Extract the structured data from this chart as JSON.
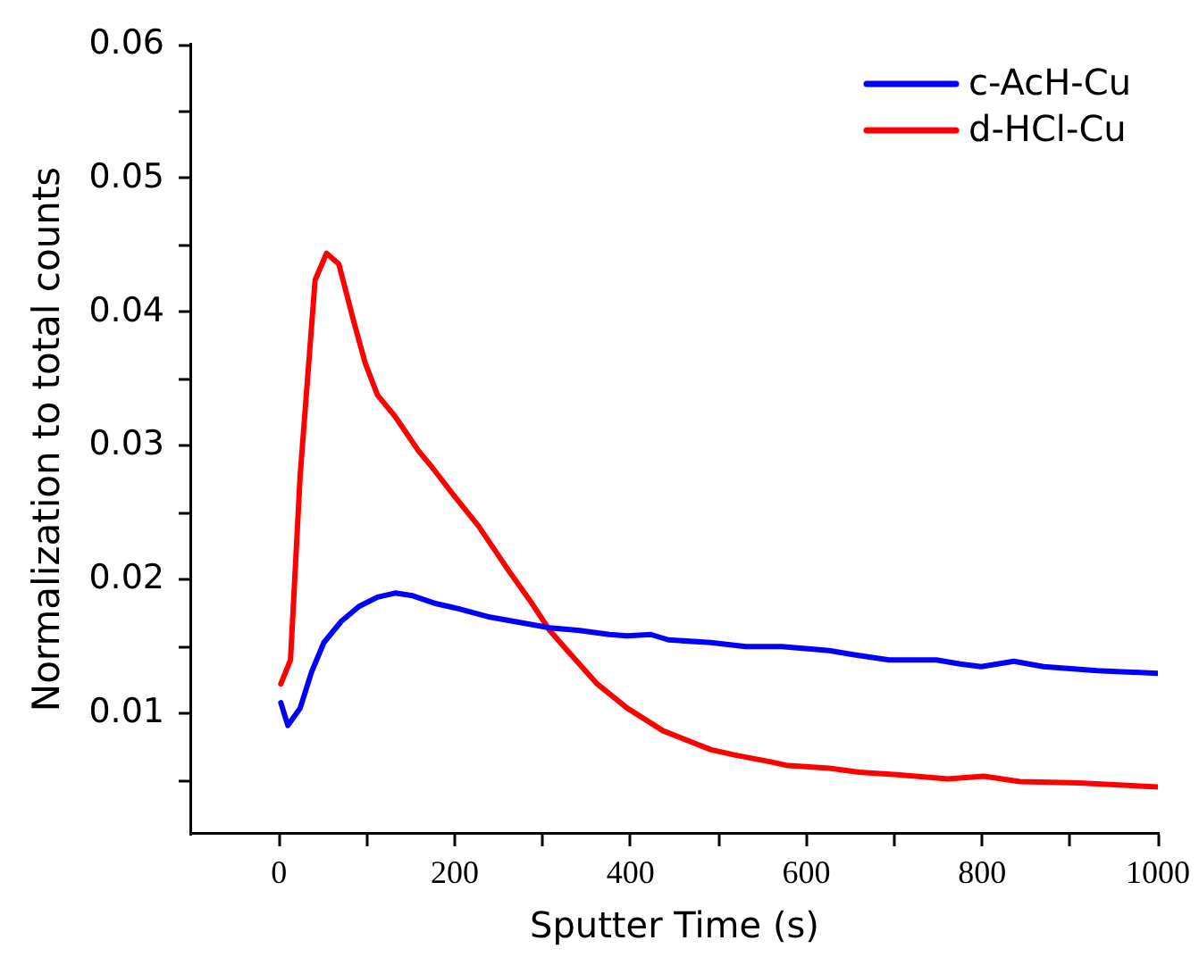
{
  "chart_data": {
    "type": "line",
    "xlabel": "Sputter Time (s)",
    "ylabel": "Normalization to total counts",
    "xlim": [
      -100,
      1000
    ],
    "xticks": [
      0,
      {
        "value": 100,
        "label": null
      },
      200,
      {
        "value": 300,
        "label": null
      },
      400,
      {
        "value": 500,
        "label": null
      },
      600,
      {
        "value": 700,
        "label": null
      },
      800,
      {
        "value": 900,
        "label": null
      },
      1000
    ],
    "ylim": [
      0.001,
      0.06
    ],
    "yticks": [
      {
        "value": 0.005,
        "label": null
      },
      0.01,
      {
        "value": 0.015,
        "label": null
      },
      0.02,
      {
        "value": 0.025,
        "label": null
      },
      0.03,
      {
        "value": 0.035,
        "label": null
      },
      0.04,
      {
        "value": 0.045,
        "label": null
      },
      0.05,
      {
        "value": 0.055,
        "label": null
      },
      0.06
    ],
    "legend": "top right",
    "marker": "none",
    "series": [
      {
        "name": "c-AcH-Cu",
        "color": "#0000ff",
        "x": [
          2,
          10,
          24,
          37,
          51,
          71,
          91,
          112,
          132,
          152,
          179,
          206,
          240,
          274,
          308,
          342,
          376,
          396,
          423,
          443,
          491,
          531,
          572,
          626,
          653,
          694,
          748,
          775,
          799,
          836,
          870,
          931,
          1000
        ],
        "values": [
          0.0108,
          0.0091,
          0.0104,
          0.0131,
          0.0153,
          0.0169,
          0.018,
          0.0187,
          0.019,
          0.0188,
          0.0182,
          0.0178,
          0.0172,
          0.0168,
          0.0164,
          0.0162,
          0.0159,
          0.0158,
          0.0159,
          0.0155,
          0.0153,
          0.015,
          0.015,
          0.0147,
          0.0144,
          0.014,
          0.014,
          0.0137,
          0.0135,
          0.0139,
          0.0135,
          0.0132,
          0.013
        ]
      },
      {
        "name": "d-HCl-Cu",
        "color": "#ff0000",
        "x": [
          2,
          13,
          24,
          41,
          54,
          68,
          85,
          98,
          112,
          132,
          159,
          173,
          200,
          227,
          261,
          288,
          308,
          328,
          362,
          396,
          437,
          491,
          518,
          558,
          579,
          626,
          660,
          707,
          761,
          802,
          843,
          910,
          1000
        ],
        "values": [
          0.0122,
          0.014,
          0.0278,
          0.0424,
          0.0444,
          0.0436,
          0.0393,
          0.0362,
          0.0338,
          0.0322,
          0.0296,
          0.0285,
          0.0262,
          0.024,
          0.0207,
          0.0182,
          0.0162,
          0.0147,
          0.0122,
          0.0104,
          0.0087,
          0.0073,
          0.0069,
          0.0064,
          0.0061,
          0.0059,
          0.0056,
          0.0054,
          0.0051,
          0.0053,
          0.0049,
          0.0048,
          0.0045
        ]
      }
    ]
  }
}
